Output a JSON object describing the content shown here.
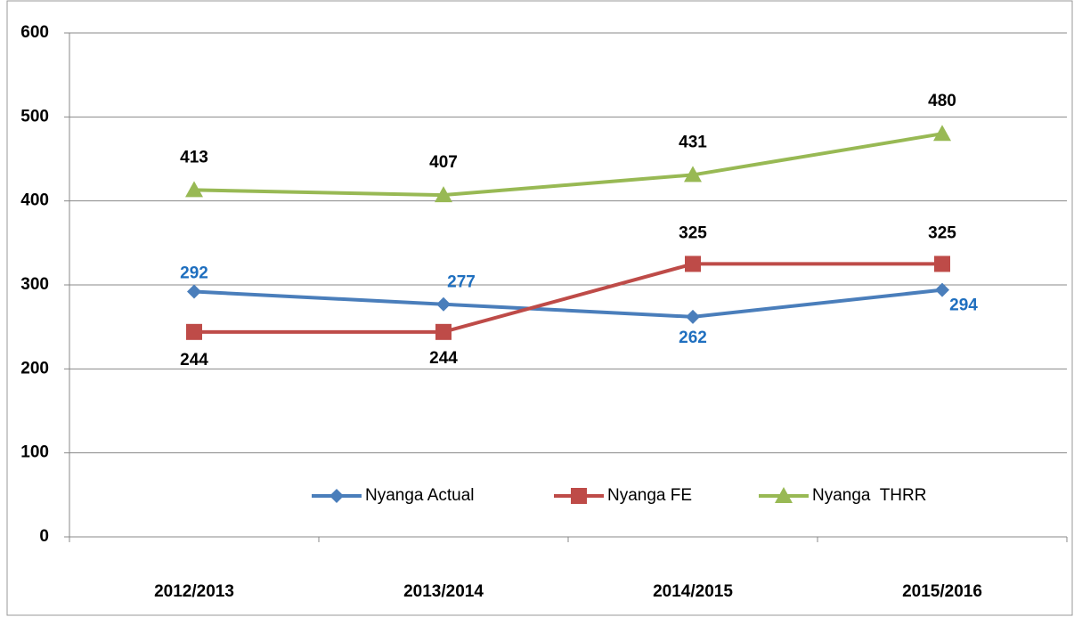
{
  "chart_data": {
    "type": "line",
    "categories": [
      "2012/2013",
      "2013/2014",
      "2014/2015",
      "2015/2016"
    ],
    "series": [
      {
        "name": "Nyanga Actual",
        "color": "#4a7ebb",
        "label_color": "#1f6fbf",
        "marker": "diamond",
        "values": [
          292,
          277,
          262,
          294
        ]
      },
      {
        "name": "Nyanga FE",
        "color": "#be4b48",
        "label_color": "#000000",
        "marker": "square",
        "values": [
          244,
          244,
          325,
          325
        ]
      },
      {
        "name": "Nyanga  THRR",
        "color": "#98b954",
        "label_color": "#000000",
        "marker": "triangle",
        "values": [
          413,
          407,
          431,
          480
        ]
      }
    ],
    "ylim": [
      0,
      600
    ],
    "yticks": [
      0,
      100,
      200,
      300,
      400,
      500,
      600
    ],
    "grid": true,
    "legend": "bottom"
  }
}
